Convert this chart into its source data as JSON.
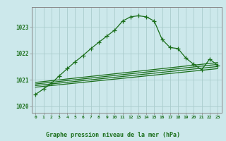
{
  "title": "Graphe pression niveau de la mer (hPa)",
  "background_color": "#cce8eb",
  "grid_color": "#aacccc",
  "line_color": "#1a6e1a",
  "spine_color": "#888888",
  "xlim": [
    -0.5,
    23.5
  ],
  "ylim": [
    1019.75,
    1023.75
  ],
  "yticks": [
    1020,
    1021,
    1022,
    1023
  ],
  "xtick_labels": [
    "0",
    "1",
    "2",
    "3",
    "4",
    "5",
    "6",
    "7",
    "8",
    "9",
    "10",
    "11",
    "12",
    "13",
    "14",
    "15",
    "16",
    "17",
    "18",
    "19",
    "20",
    "21",
    "22",
    "23"
  ],
  "main_line": [
    [
      0,
      1020.45
    ],
    [
      1,
      1020.65
    ],
    [
      2,
      1020.87
    ],
    [
      3,
      1021.15
    ],
    [
      4,
      1021.42
    ],
    [
      5,
      1021.68
    ],
    [
      6,
      1021.92
    ],
    [
      7,
      1022.18
    ],
    [
      8,
      1022.42
    ],
    [
      9,
      1022.65
    ],
    [
      10,
      1022.88
    ],
    [
      11,
      1023.22
    ],
    [
      12,
      1023.38
    ],
    [
      13,
      1023.42
    ],
    [
      14,
      1023.38
    ],
    [
      15,
      1023.22
    ],
    [
      16,
      1022.52
    ],
    [
      17,
      1022.22
    ],
    [
      18,
      1022.18
    ],
    [
      19,
      1021.82
    ],
    [
      20,
      1021.58
    ],
    [
      21,
      1021.38
    ],
    [
      22,
      1021.78
    ],
    [
      23,
      1021.55
    ]
  ],
  "flat_lines": [
    [
      [
        0,
        1020.72
      ],
      [
        23,
        1021.42
      ]
    ],
    [
      [
        0,
        1020.78
      ],
      [
        23,
        1021.5
      ]
    ],
    [
      [
        0,
        1020.84
      ],
      [
        23,
        1021.58
      ]
    ],
    [
      [
        0,
        1020.9
      ],
      [
        23,
        1021.65
      ]
    ]
  ]
}
